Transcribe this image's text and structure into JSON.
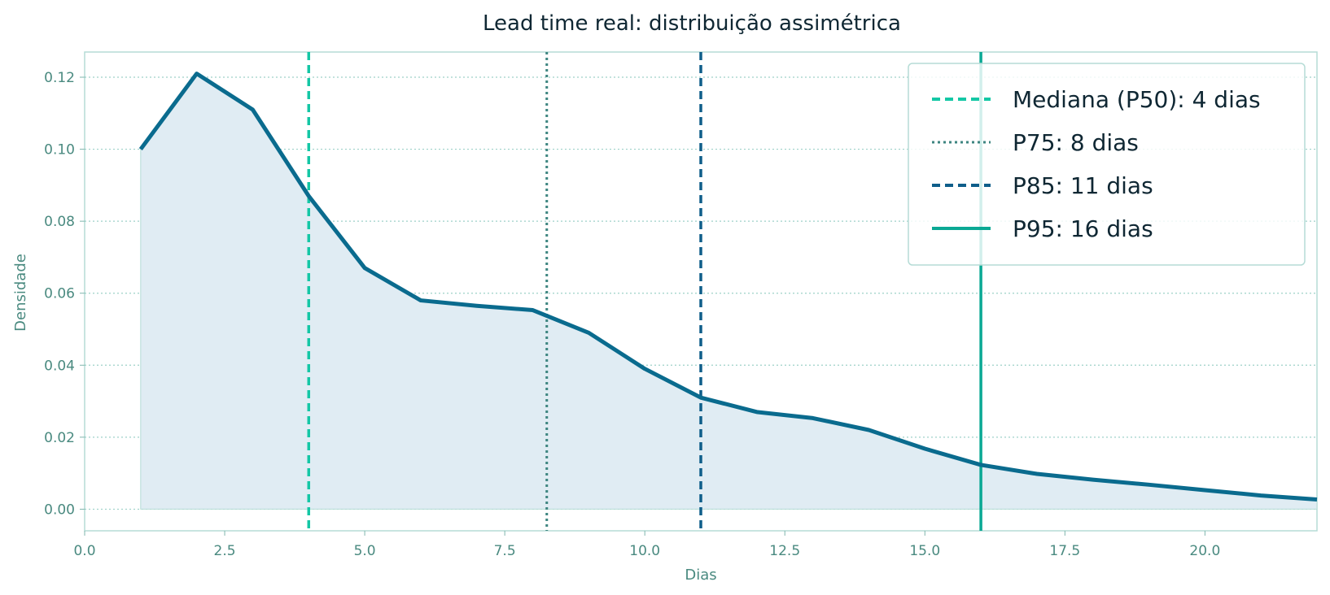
{
  "chart_data": {
    "type": "line",
    "title": "Lead time real: distribuição assimétrica",
    "xlabel": "Dias",
    "ylabel": "Densidade",
    "xlim": [
      0,
      22
    ],
    "ylim": [
      -0.006,
      0.127
    ],
    "x_ticks": [
      "0.0",
      "2.5",
      "5.0",
      "7.5",
      "10.0",
      "12.5",
      "15.0",
      "17.5",
      "20.0"
    ],
    "y_ticks": [
      "0.00",
      "0.02",
      "0.04",
      "0.06",
      "0.08",
      "0.10",
      "0.12"
    ],
    "grid": "horizontal dotted",
    "legend_placement": "top-right",
    "series": [
      {
        "x": [
          1,
          2,
          3,
          4,
          5,
          6,
          7,
          8,
          9,
          10,
          11,
          12,
          13,
          14,
          15,
          16,
          17,
          18,
          19,
          20,
          21,
          22
        ],
        "y": [
          0.1,
          0.121,
          0.111,
          0.087,
          0.067,
          0.058,
          0.0565,
          0.0553,
          0.049,
          0.039,
          0.031,
          0.027,
          0.0253,
          0.022,
          0.0168,
          0.0123,
          0.0098,
          0.0082,
          0.0068,
          0.0053,
          0.0038,
          0.0027
        ],
        "color": "#0a6b8e",
        "fill": "#e0ecf3"
      }
    ],
    "reference_lines": [
      {
        "name": "Mediana (P50): 4 dias",
        "x": 4,
        "style": "dashed",
        "color": "#14c7a5"
      },
      {
        "name": "P75: 8 dias",
        "x": 8.25,
        "style": "dotted",
        "color": "#3d8580"
      },
      {
        "name": "P85: 11 dias",
        "x": 11,
        "style": "dashed",
        "color": "#0f5e8a"
      },
      {
        "name": "P95: 16 dias",
        "x": 16,
        "style": "solid",
        "color": "#0aa894"
      }
    ]
  }
}
